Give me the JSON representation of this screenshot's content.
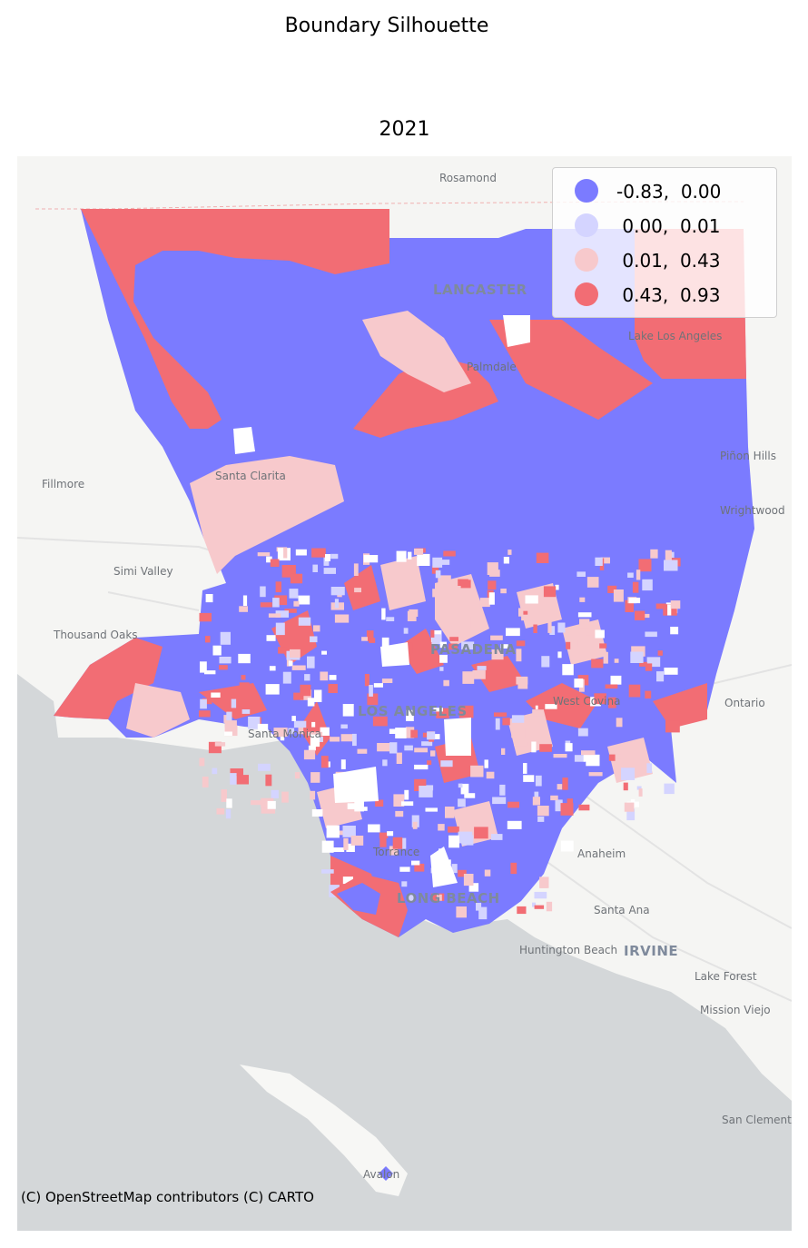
{
  "figure": {
    "suptitle": "Boundary Silhouette",
    "subtitle": "2021"
  },
  "legend": {
    "items": [
      {
        "label": "-0.83,  0.00",
        "color": "#7b7bff"
      },
      {
        "label": " 0.00,  0.01",
        "color": "#d4d4ff"
      },
      {
        "label": " 0.01,  0.43",
        "color": "#f7c9cc"
      },
      {
        "label": " 0.43,  0.93",
        "color": "#f26d74"
      }
    ]
  },
  "map": {
    "places": [
      "Rosamond",
      "LANCASTER",
      "Lake Los Angeles",
      "Palmdale",
      "Piñon Hills",
      "Santa Clarita",
      "Fillmore",
      "Wrightwood",
      "Simi Valley",
      "Thousand Oaks",
      "PASADENA",
      "West Covina",
      "Ontario",
      "Santa Monica",
      "LOS ANGELES",
      "Torrance",
      "Anaheim",
      "LONG BEACH",
      "Santa Ana",
      "Huntington Beach",
      "IRVINE",
      "Lake Forest",
      "Mission Viejo",
      "San Clemente",
      "Avalon"
    ],
    "colors": {
      "land": "#f5f5f3",
      "ocean": "#d4d7d9",
      "road": "#e6e6e6"
    }
  },
  "attribution": "(C) OpenStreetMap contributors (C) CARTO"
}
